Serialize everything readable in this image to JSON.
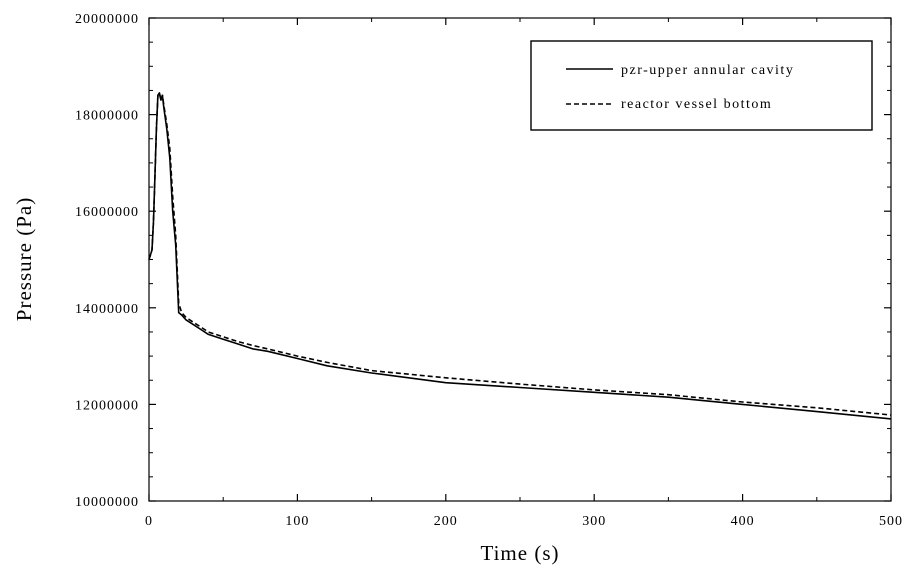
{
  "chart_data": {
    "type": "line",
    "title": "",
    "xlabel": "Time (s)",
    "ylabel": "Pressure (Pa)",
    "xlim": [
      0,
      500
    ],
    "ylim": [
      10000000,
      20000000
    ],
    "x_ticks": [
      0,
      100,
      200,
      300,
      400,
      500
    ],
    "y_ticks": [
      10000000,
      12000000,
      14000000,
      16000000,
      18000000,
      20000000
    ],
    "x_tick_labels": [
      "0",
      "100",
      "200",
      "300",
      "400",
      "500"
    ],
    "y_tick_labels": [
      "10000000",
      "12000000",
      "14000000",
      "16000000",
      "18000000",
      "20000000"
    ],
    "grid": false,
    "legend_position": "top-right",
    "series": [
      {
        "name": "pzr-upper annular cavity",
        "style": "solid",
        "color": "#000000",
        "x": [
          0,
          1,
          2,
          3,
          4,
          5,
          6,
          7,
          8,
          9,
          10,
          12,
          14,
          16,
          18,
          20,
          22,
          25,
          30,
          35,
          40,
          50,
          60,
          70,
          80,
          100,
          120,
          150,
          200,
          250,
          300,
          350,
          400,
          450,
          500
        ],
        "y": [
          15000000,
          15100000,
          15200000,
          15800000,
          16700000,
          17700000,
          18400000,
          18450000,
          18300000,
          18400000,
          18150000,
          17700000,
          17100000,
          16000000,
          15300000,
          13900000,
          13850000,
          13750000,
          13650000,
          13550000,
          13450000,
          13350000,
          13250000,
          13150000,
          13100000,
          12950000,
          12800000,
          12650000,
          12450000,
          12350000,
          12250000,
          12150000,
          12000000,
          11850000,
          11700000
        ]
      },
      {
        "name": "reactor vessel bottom",
        "style": "dashed",
        "color": "#000000",
        "x": [
          0,
          1,
          2,
          3,
          4,
          5,
          6,
          7,
          8,
          9,
          10,
          12,
          14,
          16,
          18,
          20,
          22,
          25,
          30,
          35,
          40,
          50,
          60,
          70,
          80,
          100,
          120,
          150,
          200,
          250,
          300,
          350,
          400,
          450,
          500
        ],
        "y": [
          15000000,
          15100000,
          15200000,
          15800000,
          16700000,
          17700000,
          18400000,
          18450000,
          18300000,
          18400000,
          18200000,
          17800000,
          17300000,
          16300000,
          15500000,
          14100000,
          13900000,
          13800000,
          13700000,
          13600000,
          13500000,
          13400000,
          13300000,
          13220000,
          13150000,
          13000000,
          12870000,
          12700000,
          12550000,
          12420000,
          12300000,
          12200000,
          12050000,
          11930000,
          11780000
        ]
      }
    ]
  }
}
